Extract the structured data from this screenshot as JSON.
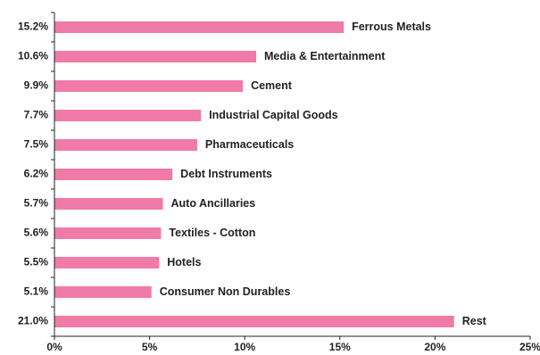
{
  "chart_data": {
    "type": "bar",
    "orientation": "horizontal",
    "bar_color": "#f07aa8",
    "axis_color": "#222222",
    "xlim": [
      0,
      25
    ],
    "x_ticks": [
      0,
      5,
      10,
      15,
      20,
      25
    ],
    "x_tick_labels": [
      "0%",
      "5%",
      "10%",
      "15%",
      "20%",
      "25%"
    ],
    "grid": false,
    "legend": "none",
    "categories": [
      "Ferrous Metals",
      "Media & Entertainment",
      "Cement",
      "Industrial Capital Goods",
      "Pharmaceuticals",
      "Debt Instruments",
      "Auto Ancillaries",
      "Textiles - Cotton",
      "Hotels",
      "Consumer Non Durables",
      "Rest"
    ],
    "values": [
      15.2,
      10.6,
      9.9,
      7.7,
      7.5,
      6.2,
      5.7,
      5.6,
      5.5,
      5.1,
      21.0
    ],
    "value_labels": [
      "15.2%",
      "10.6%",
      "9.9%",
      "7.7%",
      "7.5%",
      "6.2%",
      "5.7%",
      "5.6%",
      "5.5%",
      "5.1%",
      "21.0%"
    ]
  }
}
